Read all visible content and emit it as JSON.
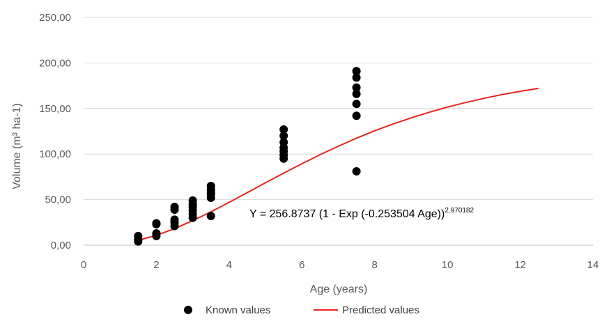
{
  "chart_data": {
    "type": "scatter",
    "xlabel": "Age (years)",
    "ylabel": "Volume (m³ ha-1)",
    "xlim": [
      0,
      14
    ],
    "ylim": [
      0,
      250
    ],
    "x_ticks": [
      0,
      2,
      4,
      6,
      8,
      10,
      12,
      14
    ],
    "y_ticks": [
      0,
      50,
      100,
      150,
      200,
      250
    ],
    "x_tick_labels": [
      "0",
      "2",
      "4",
      "6",
      "8",
      "10",
      "12",
      "14"
    ],
    "y_tick_labels": [
      "0,00",
      "50,00",
      "100,00",
      "150,00",
      "200,00",
      "250,00"
    ],
    "grid": "horizontal",
    "legend_position": "bottom",
    "annotation": {
      "text": "Y = 256.8737 (1 - Exp (-0.253504 Age))",
      "exponent": "2.970182"
    },
    "series": [
      {
        "name": "Known values",
        "kind": "scatter",
        "color": "#000000",
        "points": [
          [
            1.5,
            4
          ],
          [
            1.5,
            6
          ],
          [
            1.5,
            10
          ],
          [
            2,
            10
          ],
          [
            2,
            13
          ],
          [
            2,
            23
          ],
          [
            2,
            24
          ],
          [
            2.5,
            21
          ],
          [
            2.5,
            25
          ],
          [
            2.5,
            28
          ],
          [
            2.5,
            39
          ],
          [
            2.5,
            42
          ],
          [
            3,
            30
          ],
          [
            3,
            34
          ],
          [
            3,
            38
          ],
          [
            3,
            42
          ],
          [
            3,
            45
          ],
          [
            3,
            49
          ],
          [
            3.5,
            32
          ],
          [
            3.5,
            52
          ],
          [
            3.5,
            56
          ],
          [
            3.5,
            58
          ],
          [
            3.5,
            61
          ],
          [
            3.5,
            65
          ],
          [
            5.5,
            95
          ],
          [
            5.5,
            99
          ],
          [
            5.5,
            103
          ],
          [
            5.5,
            107
          ],
          [
            5.5,
            113
          ],
          [
            5.5,
            120
          ],
          [
            5.5,
            127
          ],
          [
            7.5,
            81
          ],
          [
            7.5,
            142
          ],
          [
            7.5,
            155
          ],
          [
            7.5,
            166
          ],
          [
            7.5,
            173
          ],
          [
            7.5,
            184
          ],
          [
            7.5,
            191
          ]
        ]
      },
      {
        "name": "Predicted values",
        "kind": "line",
        "color": "#e8221b",
        "points": [
          [
            1.5,
            5.3
          ],
          [
            2,
            10.8
          ],
          [
            2.5,
            18.1
          ],
          [
            3,
            26.9
          ],
          [
            3.5,
            36.6
          ],
          [
            4,
            47.0
          ],
          [
            4.5,
            57.7
          ],
          [
            5,
            68.5
          ],
          [
            5.5,
            79.1
          ],
          [
            6,
            89.4
          ],
          [
            6.5,
            99.3
          ],
          [
            7,
            108.6
          ],
          [
            7.5,
            117.4
          ],
          [
            8,
            125.5
          ],
          [
            8.5,
            132.9
          ],
          [
            9,
            139.7
          ],
          [
            9.5,
            145.9
          ],
          [
            10,
            151.5
          ],
          [
            10.5,
            156.6
          ],
          [
            11,
            161.2
          ],
          [
            11.5,
            165.3
          ],
          [
            12,
            168.9
          ],
          [
            12.5,
            172.1
          ]
        ]
      }
    ]
  }
}
